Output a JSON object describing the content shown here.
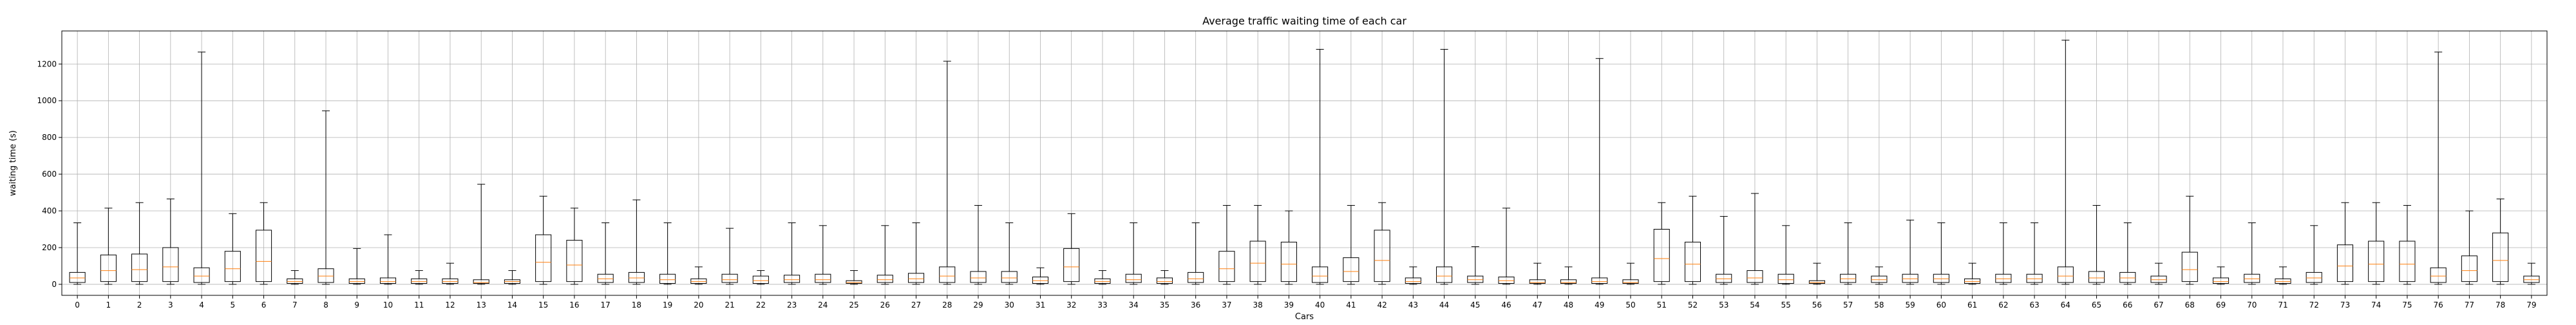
{
  "chart_data": {
    "type": "boxplot",
    "title": "Average traffic waiting time of each car",
    "xlabel": "Cars",
    "ylabel": "waiting time (s)",
    "ylim": [
      -60,
      1380
    ],
    "yticks": [
      0,
      200,
      400,
      600,
      800,
      1000,
      1200
    ],
    "grid": true,
    "box_color": "#000000",
    "median_color": "#ff7f0e",
    "categories": [
      "0",
      "1",
      "2",
      "3",
      "4",
      "5",
      "6",
      "7",
      "8",
      "9",
      "10",
      "11",
      "12",
      "13",
      "14",
      "15",
      "16",
      "17",
      "18",
      "19",
      "20",
      "21",
      "22",
      "23",
      "24",
      "25",
      "26",
      "27",
      "28",
      "29",
      "30",
      "31",
      "32",
      "33",
      "34",
      "35",
      "36",
      "37",
      "38",
      "39",
      "40",
      "41",
      "42",
      "43",
      "44",
      "45",
      "46",
      "47",
      "48",
      "49",
      "50",
      "51",
      "52",
      "53",
      "54",
      "55",
      "56",
      "57",
      "58",
      "59",
      "60",
      "61",
      "62",
      "63",
      "64",
      "65",
      "66",
      "67",
      "68",
      "69",
      "70",
      "71",
      "72",
      "73",
      "74",
      "75",
      "76",
      "77",
      "78",
      "79"
    ],
    "boxes": [
      {
        "whislo": 0,
        "q1": 10,
        "med": 35,
        "q3": 65,
        "whishi": 335
      },
      {
        "whislo": 0,
        "q1": 15,
        "med": 75,
        "q3": 160,
        "whishi": 415
      },
      {
        "whislo": 0,
        "q1": 15,
        "med": 80,
        "q3": 165,
        "whishi": 445
      },
      {
        "whislo": 0,
        "q1": 15,
        "med": 95,
        "q3": 200,
        "whishi": 465
      },
      {
        "whislo": 0,
        "q1": 10,
        "med": 45,
        "q3": 90,
        "whishi": 1265
      },
      {
        "whislo": 0,
        "q1": 15,
        "med": 85,
        "q3": 180,
        "whishi": 385
      },
      {
        "whislo": 0,
        "q1": 15,
        "med": 125,
        "q3": 295,
        "whishi": 445
      },
      {
        "whislo": 0,
        "q1": 5,
        "med": 15,
        "q3": 30,
        "whishi": 75
      },
      {
        "whislo": 0,
        "q1": 10,
        "med": 45,
        "q3": 85,
        "whishi": 945
      },
      {
        "whislo": 0,
        "q1": 5,
        "med": 15,
        "q3": 30,
        "whishi": 195
      },
      {
        "whislo": 0,
        "q1": 5,
        "med": 15,
        "q3": 35,
        "whishi": 270
      },
      {
        "whislo": 0,
        "q1": 5,
        "med": 15,
        "q3": 30,
        "whishi": 75
      },
      {
        "whislo": 0,
        "q1": 5,
        "med": 15,
        "q3": 30,
        "whishi": 115
      },
      {
        "whislo": 0,
        "q1": 5,
        "med": 10,
        "q3": 25,
        "whishi": 545
      },
      {
        "whislo": 0,
        "q1": 5,
        "med": 15,
        "q3": 25,
        "whishi": 75
      },
      {
        "whislo": 0,
        "q1": 15,
        "med": 120,
        "q3": 270,
        "whishi": 480
      },
      {
        "whislo": 0,
        "q1": 15,
        "med": 105,
        "q3": 240,
        "whishi": 415
      },
      {
        "whislo": 0,
        "q1": 10,
        "med": 30,
        "q3": 55,
        "whishi": 335
      },
      {
        "whislo": 0,
        "q1": 10,
        "med": 35,
        "q3": 65,
        "whishi": 460
      },
      {
        "whislo": 0,
        "q1": 5,
        "med": 25,
        "q3": 55,
        "whishi": 335
      },
      {
        "whislo": 0,
        "q1": 5,
        "med": 15,
        "q3": 30,
        "whishi": 95
      },
      {
        "whislo": 0,
        "q1": 10,
        "med": 25,
        "q3": 55,
        "whishi": 305
      },
      {
        "whislo": 0,
        "q1": 5,
        "med": 20,
        "q3": 45,
        "whishi": 75
      },
      {
        "whislo": 0,
        "q1": 10,
        "med": 25,
        "q3": 50,
        "whishi": 335
      },
      {
        "whislo": 0,
        "q1": 10,
        "med": 25,
        "q3": 55,
        "whishi": 320
      },
      {
        "whislo": 0,
        "q1": 5,
        "med": 10,
        "q3": 20,
        "whishi": 75
      },
      {
        "whislo": 0,
        "q1": 10,
        "med": 25,
        "q3": 50,
        "whishi": 320
      },
      {
        "whislo": 0,
        "q1": 10,
        "med": 30,
        "q3": 60,
        "whishi": 335
      },
      {
        "whislo": 0,
        "q1": 10,
        "med": 45,
        "q3": 95,
        "whishi": 1215
      },
      {
        "whislo": 0,
        "q1": 10,
        "med": 35,
        "q3": 70,
        "whishi": 430
      },
      {
        "whislo": 0,
        "q1": 10,
        "med": 35,
        "q3": 70,
        "whishi": 335
      },
      {
        "whislo": 0,
        "q1": 5,
        "med": 20,
        "q3": 40,
        "whishi": 90
      },
      {
        "whislo": 0,
        "q1": 15,
        "med": 95,
        "q3": 195,
        "whishi": 385
      },
      {
        "whislo": 0,
        "q1": 5,
        "med": 15,
        "q3": 30,
        "whishi": 75
      },
      {
        "whislo": 0,
        "q1": 10,
        "med": 25,
        "q3": 55,
        "whishi": 335
      },
      {
        "whislo": 0,
        "q1": 5,
        "med": 15,
        "q3": 35,
        "whishi": 75
      },
      {
        "whislo": 0,
        "q1": 10,
        "med": 30,
        "q3": 65,
        "whishi": 335
      },
      {
        "whislo": 0,
        "q1": 15,
        "med": 85,
        "q3": 180,
        "whishi": 430
      },
      {
        "whislo": 0,
        "q1": 15,
        "med": 115,
        "q3": 235,
        "whishi": 430
      },
      {
        "whislo": 0,
        "q1": 15,
        "med": 110,
        "q3": 230,
        "whishi": 400
      },
      {
        "whislo": 0,
        "q1": 10,
        "med": 45,
        "q3": 95,
        "whishi": 1280
      },
      {
        "whislo": 0,
        "q1": 15,
        "med": 70,
        "q3": 145,
        "whishi": 430
      },
      {
        "whislo": 0,
        "q1": 15,
        "med": 130,
        "q3": 295,
        "whishi": 445
      },
      {
        "whislo": 0,
        "q1": 5,
        "med": 15,
        "q3": 35,
        "whishi": 95
      },
      {
        "whislo": 0,
        "q1": 10,
        "med": 45,
        "q3": 95,
        "whishi": 1280
      },
      {
        "whislo": 0,
        "q1": 10,
        "med": 25,
        "q3": 45,
        "whishi": 205
      },
      {
        "whislo": 0,
        "q1": 5,
        "med": 20,
        "q3": 40,
        "whishi": 415
      },
      {
        "whislo": 0,
        "q1": 5,
        "med": 10,
        "q3": 25,
        "whishi": 115
      },
      {
        "whislo": 0,
        "q1": 5,
        "med": 10,
        "q3": 25,
        "whishi": 95
      },
      {
        "whislo": 0,
        "q1": 5,
        "med": 15,
        "q3": 35,
        "whishi": 1230
      },
      {
        "whislo": 0,
        "q1": 5,
        "med": 10,
        "q3": 25,
        "whishi": 115
      },
      {
        "whislo": 0,
        "q1": 15,
        "med": 140,
        "q3": 300,
        "whishi": 445
      },
      {
        "whislo": 0,
        "q1": 15,
        "med": 110,
        "q3": 230,
        "whishi": 480
      },
      {
        "whislo": 0,
        "q1": 10,
        "med": 30,
        "q3": 55,
        "whishi": 370
      },
      {
        "whislo": 0,
        "q1": 10,
        "med": 35,
        "q3": 75,
        "whishi": 495
      },
      {
        "whislo": 0,
        "q1": 5,
        "med": 25,
        "q3": 55,
        "whishi": 320
      },
      {
        "whislo": 0,
        "q1": 5,
        "med": 10,
        "q3": 20,
        "whishi": 115
      },
      {
        "whislo": 0,
        "q1": 10,
        "med": 30,
        "q3": 55,
        "whishi": 335
      },
      {
        "whislo": 0,
        "q1": 10,
        "med": 25,
        "q3": 45,
        "whishi": 95
      },
      {
        "whislo": 0,
        "q1": 10,
        "med": 30,
        "q3": 55,
        "whishi": 350
      },
      {
        "whislo": 0,
        "q1": 10,
        "med": 30,
        "q3": 55,
        "whishi": 335
      },
      {
        "whislo": 0,
        "q1": 5,
        "med": 15,
        "q3": 30,
        "whishi": 115
      },
      {
        "whislo": 0,
        "q1": 10,
        "med": 30,
        "q3": 55,
        "whishi": 335
      },
      {
        "whislo": 0,
        "q1": 10,
        "med": 30,
        "q3": 55,
        "whishi": 335
      },
      {
        "whislo": 0,
        "q1": 10,
        "med": 45,
        "q3": 95,
        "whishi": 1330
      },
      {
        "whislo": 0,
        "q1": 10,
        "med": 35,
        "q3": 70,
        "whishi": 430
      },
      {
        "whislo": 0,
        "q1": 10,
        "med": 35,
        "q3": 65,
        "whishi": 335
      },
      {
        "whislo": 0,
        "q1": 10,
        "med": 25,
        "q3": 45,
        "whishi": 115
      },
      {
        "whislo": 0,
        "q1": 15,
        "med": 80,
        "q3": 175,
        "whishi": 480
      },
      {
        "whislo": 0,
        "q1": 5,
        "med": 15,
        "q3": 35,
        "whishi": 95
      },
      {
        "whislo": 0,
        "q1": 10,
        "med": 30,
        "q3": 55,
        "whishi": 335
      },
      {
        "whislo": 0,
        "q1": 5,
        "med": 15,
        "q3": 30,
        "whishi": 95
      },
      {
        "whislo": 0,
        "q1": 10,
        "med": 35,
        "q3": 65,
        "whishi": 320
      },
      {
        "whislo": 0,
        "q1": 15,
        "med": 100,
        "q3": 215,
        "whishi": 445
      },
      {
        "whislo": 0,
        "q1": 15,
        "med": 110,
        "q3": 235,
        "whishi": 445
      },
      {
        "whislo": 0,
        "q1": 15,
        "med": 110,
        "q3": 235,
        "whishi": 430
      },
      {
        "whislo": 0,
        "q1": 10,
        "med": 45,
        "q3": 90,
        "whishi": 1265
      },
      {
        "whislo": 0,
        "q1": 15,
        "med": 75,
        "q3": 155,
        "whishi": 400
      },
      {
        "whislo": 0,
        "q1": 15,
        "med": 130,
        "q3": 280,
        "whishi": 465
      },
      {
        "whislo": 0,
        "q1": 10,
        "med": 25,
        "q3": 45,
        "whishi": 115
      }
    ]
  }
}
